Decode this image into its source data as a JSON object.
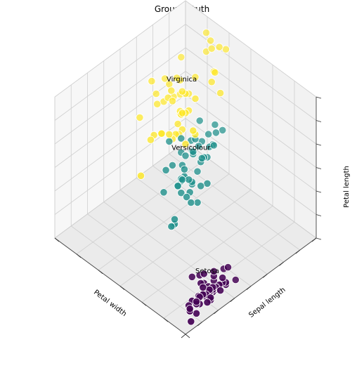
{
  "chart_data": {
    "type": "scatter",
    "projection": "3d",
    "title": "Ground Truth",
    "xlabel": "Petal width",
    "ylabel": "Sepal length",
    "zlabel": "Petal length",
    "xlim": [
      0,
      3
    ],
    "ylim": [
      4,
      8
    ],
    "zlim": [
      1,
      7
    ],
    "grid": true,
    "legend": "none",
    "colors": {
      "Setosa": "#440154",
      "Versicolour": "#21918c",
      "Virginica": "#fde725"
    },
    "annotations": [
      {
        "text": "Setosa",
        "x": 0.25,
        "y": 5.0,
        "z": 1.46
      },
      {
        "text": "Versicolour",
        "x": 1.33,
        "y": 5.94,
        "z": 4.26
      },
      {
        "text": "Virginica",
        "x": 2.03,
        "y": 6.59,
        "z": 5.55
      }
    ],
    "series": [
      {
        "name": "Setosa",
        "points": [
          [
            0.2,
            5.1,
            1.4
          ],
          [
            0.2,
            4.9,
            1.4
          ],
          [
            0.2,
            4.7,
            1.3
          ],
          [
            0.2,
            4.6,
            1.5
          ],
          [
            0.2,
            5.0,
            1.4
          ],
          [
            0.4,
            5.4,
            1.7
          ],
          [
            0.3,
            4.6,
            1.4
          ],
          [
            0.2,
            5.0,
            1.5
          ],
          [
            0.2,
            4.4,
            1.4
          ],
          [
            0.1,
            4.9,
            1.5
          ],
          [
            0.2,
            5.4,
            1.5
          ],
          [
            0.2,
            4.8,
            1.6
          ],
          [
            0.1,
            4.8,
            1.4
          ],
          [
            0.1,
            4.3,
            1.1
          ],
          [
            0.2,
            5.8,
            1.2
          ],
          [
            0.4,
            5.7,
            1.5
          ],
          [
            0.4,
            5.4,
            1.3
          ],
          [
            0.3,
            5.1,
            1.4
          ],
          [
            0.3,
            5.7,
            1.7
          ],
          [
            0.3,
            5.1,
            1.5
          ],
          [
            0.2,
            5.4,
            1.7
          ],
          [
            0.4,
            5.1,
            1.5
          ],
          [
            0.2,
            4.6,
            1.0
          ],
          [
            0.5,
            5.1,
            1.7
          ],
          [
            0.2,
            4.8,
            1.9
          ],
          [
            0.2,
            5.0,
            1.6
          ],
          [
            0.4,
            5.0,
            1.6
          ],
          [
            0.2,
            5.2,
            1.5
          ],
          [
            0.2,
            5.2,
            1.4
          ],
          [
            0.2,
            4.7,
            1.6
          ],
          [
            0.2,
            4.8,
            1.6
          ],
          [
            0.4,
            5.4,
            1.5
          ],
          [
            0.1,
            5.2,
            1.5
          ],
          [
            0.2,
            5.5,
            1.4
          ],
          [
            0.2,
            4.9,
            1.5
          ],
          [
            0.2,
            5.0,
            1.2
          ],
          [
            0.2,
            5.5,
            1.3
          ],
          [
            0.1,
            4.9,
            1.4
          ],
          [
            0.2,
            4.4,
            1.3
          ],
          [
            0.2,
            5.1,
            1.5
          ],
          [
            0.3,
            5.0,
            1.3
          ],
          [
            0.3,
            4.5,
            1.3
          ],
          [
            0.2,
            4.4,
            1.3
          ],
          [
            0.6,
            5.0,
            1.6
          ],
          [
            0.4,
            5.1,
            1.9
          ],
          [
            0.3,
            4.8,
            1.4
          ],
          [
            0.2,
            5.1,
            1.6
          ],
          [
            0.2,
            4.6,
            1.4
          ],
          [
            0.2,
            5.3,
            1.5
          ],
          [
            0.2,
            5.0,
            1.4
          ]
        ]
      },
      {
        "name": "Versicolour",
        "points": [
          [
            1.4,
            7.0,
            4.7
          ],
          [
            1.5,
            6.4,
            4.5
          ],
          [
            1.5,
            6.9,
            4.9
          ],
          [
            1.3,
            5.5,
            4.0
          ],
          [
            1.5,
            6.5,
            4.6
          ],
          [
            1.3,
            5.7,
            4.5
          ],
          [
            1.6,
            6.3,
            4.7
          ],
          [
            1.0,
            4.9,
            3.3
          ],
          [
            1.3,
            6.6,
            4.6
          ],
          [
            1.4,
            5.2,
            3.9
          ],
          [
            1.0,
            5.0,
            3.5
          ],
          [
            1.5,
            5.9,
            4.2
          ],
          [
            1.0,
            6.0,
            4.0
          ],
          [
            1.4,
            6.1,
            4.7
          ],
          [
            1.3,
            5.6,
            3.6
          ],
          [
            1.4,
            6.7,
            4.4
          ],
          [
            1.5,
            5.6,
            4.5
          ],
          [
            1.0,
            5.8,
            4.1
          ],
          [
            1.5,
            6.2,
            4.5
          ],
          [
            1.1,
            5.6,
            3.9
          ],
          [
            1.8,
            5.9,
            4.8
          ],
          [
            1.3,
            6.1,
            4.0
          ],
          [
            1.5,
            6.3,
            4.9
          ],
          [
            1.2,
            6.1,
            4.7
          ],
          [
            1.3,
            6.4,
            4.3
          ],
          [
            1.4,
            6.6,
            4.4
          ],
          [
            1.4,
            6.8,
            4.8
          ],
          [
            1.7,
            6.7,
            5.0
          ],
          [
            1.5,
            6.0,
            4.5
          ],
          [
            1.0,
            5.7,
            3.5
          ],
          [
            1.1,
            5.5,
            3.8
          ],
          [
            1.0,
            5.5,
            3.7
          ],
          [
            1.2,
            5.8,
            3.9
          ],
          [
            1.6,
            6.0,
            5.1
          ],
          [
            1.5,
            5.4,
            4.5
          ],
          [
            1.6,
            6.0,
            4.5
          ],
          [
            1.5,
            6.7,
            4.7
          ],
          [
            1.3,
            6.3,
            4.4
          ],
          [
            1.3,
            5.6,
            4.1
          ],
          [
            1.3,
            5.5,
            4.0
          ],
          [
            1.2,
            5.5,
            4.4
          ],
          [
            1.4,
            6.1,
            4.6
          ],
          [
            1.2,
            5.8,
            4.0
          ],
          [
            1.0,
            5.0,
            3.3
          ],
          [
            1.3,
            5.6,
            4.2
          ],
          [
            1.2,
            5.7,
            4.2
          ],
          [
            1.3,
            5.7,
            4.2
          ],
          [
            1.3,
            6.2,
            4.3
          ],
          [
            1.1,
            5.1,
            3.0
          ],
          [
            1.3,
            5.7,
            4.1
          ]
        ]
      },
      {
        "name": "Virginica",
        "points": [
          [
            2.5,
            6.3,
            6.0
          ],
          [
            1.9,
            5.8,
            5.1
          ],
          [
            2.1,
            7.1,
            5.9
          ],
          [
            1.8,
            6.3,
            5.6
          ],
          [
            2.2,
            6.5,
            5.8
          ],
          [
            2.1,
            7.6,
            6.6
          ],
          [
            1.7,
            4.9,
            4.5
          ],
          [
            1.8,
            7.3,
            6.3
          ],
          [
            1.8,
            6.7,
            5.8
          ],
          [
            2.5,
            7.2,
            6.1
          ],
          [
            2.0,
            6.5,
            5.1
          ],
          [
            1.9,
            6.4,
            5.3
          ],
          [
            2.1,
            6.8,
            5.5
          ],
          [
            2.0,
            5.7,
            5.0
          ],
          [
            2.4,
            5.8,
            5.1
          ],
          [
            2.3,
            6.4,
            5.3
          ],
          [
            1.8,
            6.5,
            5.5
          ],
          [
            2.2,
            7.7,
            6.7
          ],
          [
            2.3,
            7.7,
            6.9
          ],
          [
            1.5,
            6.0,
            5.0
          ],
          [
            2.3,
            6.9,
            5.7
          ],
          [
            2.0,
            5.6,
            4.9
          ],
          [
            2.0,
            7.7,
            6.7
          ],
          [
            1.8,
            6.3,
            4.9
          ],
          [
            2.1,
            6.7,
            5.7
          ],
          [
            1.8,
            7.2,
            6.0
          ],
          [
            1.8,
            6.2,
            4.8
          ],
          [
            1.8,
            6.1,
            4.9
          ],
          [
            2.1,
            6.4,
            5.6
          ],
          [
            1.6,
            7.2,
            5.8
          ],
          [
            1.9,
            7.4,
            6.1
          ],
          [
            2.0,
            7.9,
            6.4
          ],
          [
            2.2,
            6.4,
            5.6
          ],
          [
            1.5,
            6.3,
            5.1
          ],
          [
            1.4,
            6.1,
            5.6
          ],
          [
            2.3,
            7.7,
            6.1
          ],
          [
            2.4,
            6.3,
            5.6
          ],
          [
            1.8,
            6.4,
            5.5
          ],
          [
            1.8,
            6.0,
            4.8
          ],
          [
            2.1,
            6.9,
            5.4
          ],
          [
            2.4,
            6.7,
            5.6
          ],
          [
            2.3,
            6.9,
            5.1
          ],
          [
            1.9,
            5.8,
            5.1
          ],
          [
            2.3,
            6.8,
            5.9
          ],
          [
            2.5,
            6.7,
            5.7
          ],
          [
            2.3,
            6.7,
            5.2
          ],
          [
            1.9,
            6.3,
            5.0
          ],
          [
            2.0,
            6.5,
            5.2
          ],
          [
            2.3,
            6.2,
            5.4
          ],
          [
            1.8,
            5.9,
            5.1
          ]
        ]
      }
    ]
  }
}
